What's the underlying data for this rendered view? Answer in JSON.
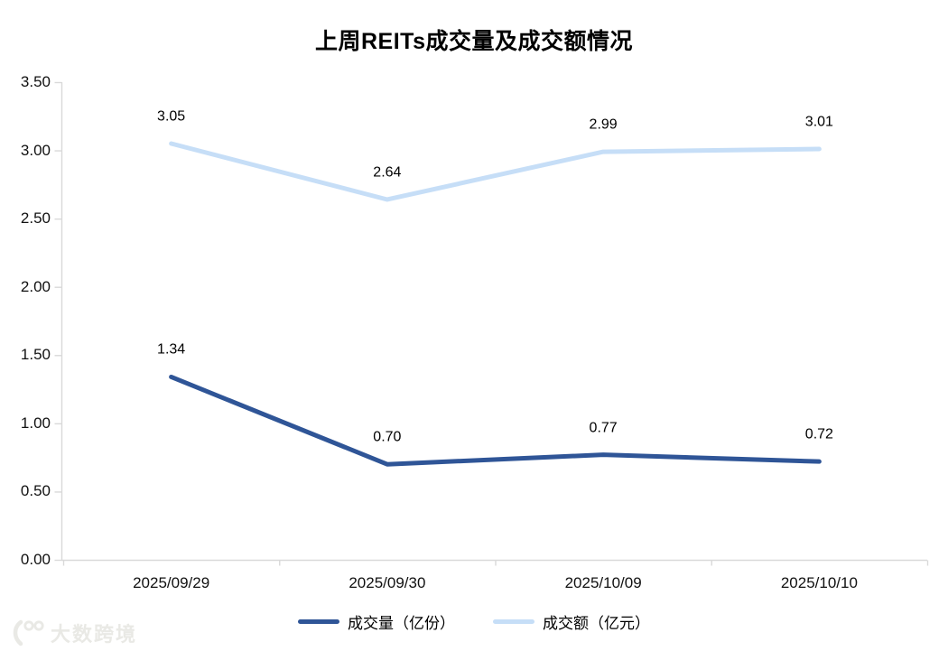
{
  "title": "上周REITs成交量及成交额情况",
  "chart_data": {
    "type": "line",
    "title": "上周REITs成交量及成交额情况",
    "categories": [
      "2025/09/29",
      "2025/09/30",
      "2025/10/09",
      "2025/10/10"
    ],
    "series": [
      {
        "name": "成交量（亿份）",
        "values": [
          1.34,
          0.7,
          0.77,
          0.72
        ],
        "color": "#2F5597"
      },
      {
        "name": "成交额（亿元）",
        "values": [
          3.05,
          2.64,
          2.99,
          3.01
        ],
        "color": "#C6DEF7"
      }
    ],
    "ylim": [
      0,
      3.5
    ],
    "ytick_step": 0.5,
    "ytick_labels": [
      "0.00",
      "0.50",
      "1.00",
      "1.50",
      "2.00",
      "2.50",
      "3.00",
      "3.50"
    ],
    "grid": false,
    "data_labels": true,
    "legend_position": "bottom",
    "axis_color": "#D9D9D9",
    "label_color": "#000000"
  },
  "legend": {
    "volume_label": "成交量（亿份）",
    "turnover_label": "成交额（亿元）"
  },
  "watermark": {
    "brand": "大数跨境",
    "logo": "dashu-100-logo"
  }
}
